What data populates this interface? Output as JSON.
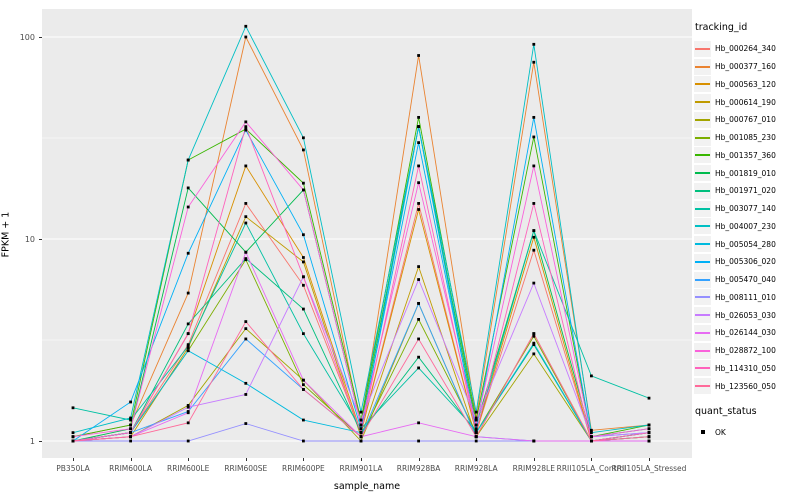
{
  "figure": {
    "ylabel": "FPKM + 1",
    "xlabel": "sample_name",
    "legend_tracking_title": "tracking_id",
    "legend_quant_title": "quant_status",
    "quant_items": [
      {
        "label": "OK",
        "marker": "black-square"
      }
    ],
    "panel_bg": "#EBEBEB",
    "gridline_color": "#FFFFFF",
    "tick_text_color": "#4D4D4D",
    "point_color": "#000000"
  },
  "chart_data": {
    "type": "line",
    "title": "",
    "xlabel": "sample_name",
    "ylabel": "FPKM + 1",
    "yscale": "log10",
    "y_ticks": [
      "1",
      "10",
      "100"
    ],
    "y_tick_values": [
      1,
      10,
      100
    ],
    "y_minor_values": [
      3.1623,
      31.623
    ],
    "ylim": [
      0.88,
      135
    ],
    "grid": true,
    "legend_position": "right",
    "categories": [
      "PB350LA",
      "RRIM600LA",
      "RRIM600LE",
      "RRIM600SE",
      "RRIM600PE",
      "RRIM901LA",
      "RRIM928BA",
      "RRIM928LA",
      "RRIM928LE",
      "RRII105LA_Control",
      "RRII105LA_Stressed"
    ],
    "series": [
      {
        "name": "Hb_000264_340",
        "color": "#F8766D",
        "values": [
          1.0,
          1.1,
          3.0,
          15,
          5.9,
          1.1,
          15,
          1.1,
          8.8,
          1.0,
          1.1
        ]
      },
      {
        "name": "Hb_000377_160",
        "color": "#EA8331",
        "values": [
          1.05,
          1.2,
          5.4,
          100,
          27.6,
          1.2,
          81,
          1.3,
          75,
          1.13,
          1.2
        ]
      },
      {
        "name": "Hb_000563_120",
        "color": "#D89000",
        "values": [
          1.0,
          1.1,
          3.4,
          23,
          8.1,
          1.1,
          14,
          1.1,
          10.2,
          1.0,
          1.05
        ]
      },
      {
        "name": "Hb_000614_190",
        "color": "#C09B00",
        "values": [
          1.0,
          1.05,
          2.9,
          12.9,
          7.7,
          1.05,
          7.3,
          1.05,
          3.4,
          1.0,
          1.0
        ]
      },
      {
        "name": "Hb_000767_010",
        "color": "#A3A500",
        "values": [
          1.0,
          1.05,
          1.5,
          3.6,
          2.0,
          1.0,
          4.8,
          1.05,
          2.7,
          1.0,
          1.05
        ]
      },
      {
        "name": "Hb_001085_230",
        "color": "#7CAE00",
        "values": [
          1.0,
          1.1,
          2.8,
          7.9,
          1.9,
          1.05,
          4.0,
          1.1,
          3.3,
          1.0,
          1.1
        ]
      },
      {
        "name": "Hb_001357_360",
        "color": "#39B600",
        "values": [
          1.05,
          1.2,
          24.6,
          35,
          18.9,
          1.27,
          40,
          1.27,
          32,
          1.05,
          1.2
        ]
      },
      {
        "name": "Hb_001819_010",
        "color": "#00BB4E",
        "values": [
          1.0,
          1.15,
          17.9,
          8.6,
          17.5,
          1.2,
          36,
          1.2,
          11,
          1.05,
          1.15
        ]
      },
      {
        "name": "Hb_001971_020",
        "color": "#00BF7D",
        "values": [
          1.0,
          1.1,
          3.8,
          8.0,
          4.5,
          1.1,
          2.6,
          1.1,
          3.0,
          1.0,
          1.1
        ]
      },
      {
        "name": "Hb_003077_140",
        "color": "#00C1A3",
        "values": [
          1.46,
          1.27,
          2.95,
          12,
          3.4,
          1.15,
          2.3,
          1.13,
          11,
          2.1,
          1.63
        ]
      },
      {
        "name": "Hb_004007_230",
        "color": "#00BFC4",
        "values": [
          1.1,
          1.3,
          24.6,
          113,
          31.7,
          1.39,
          36,
          1.39,
          92,
          1.1,
          1.2
        ]
      },
      {
        "name": "Hb_005054_280",
        "color": "#00BADE",
        "values": [
          1.0,
          1.1,
          2.8,
          1.93,
          1.27,
          1.1,
          36,
          1.1,
          3.05,
          1.0,
          1.05
        ]
      },
      {
        "name": "Hb_005306_020",
        "color": "#00B0F6",
        "values": [
          1.0,
          1.56,
          8.5,
          34.6,
          10.5,
          1.15,
          30,
          1.15,
          40,
          1.05,
          1.1
        ]
      },
      {
        "name": "Hb_005470_040",
        "color": "#35A2FF",
        "values": [
          1.0,
          1.1,
          1.4,
          3.2,
          1.8,
          1.05,
          4.8,
          1.05,
          1.0,
          1.0,
          1.0
        ]
      },
      {
        "name": "Hb_008111_010",
        "color": "#9590FF",
        "values": [
          1.0,
          1.0,
          1.0,
          1.22,
          1.0,
          1.0,
          1.0,
          1.0,
          1.0,
          1.0,
          1.0
        ]
      },
      {
        "name": "Hb_026053_030",
        "color": "#C77CFF",
        "values": [
          1.0,
          1.05,
          1.47,
          1.7,
          6.5,
          1.27,
          6.3,
          1.27,
          6.05,
          1.05,
          1.1
        ]
      },
      {
        "name": "Hb_026144_030",
        "color": "#E76BF3",
        "values": [
          1.0,
          1.05,
          1.38,
          8.6,
          2.0,
          1.05,
          1.23,
          1.05,
          1.0,
          1.0,
          1.0
        ]
      },
      {
        "name": "Hb_028872_100",
        "color": "#FA62DB",
        "values": [
          1.05,
          1.15,
          14.4,
          38,
          17.5,
          1.2,
          19,
          1.2,
          23,
          1.05,
          1.15
        ]
      },
      {
        "name": "Hb_114310_050",
        "color": "#FF62BC",
        "values": [
          1.0,
          1.1,
          3.4,
          36,
          6.5,
          1.1,
          23,
          1.1,
          15,
          1.0,
          1.1
        ]
      },
      {
        "name": "Hb_123560_050",
        "color": "#FF6A9A",
        "values": [
          1.0,
          1.05,
          1.23,
          3.9,
          1.8,
          1.05,
          3.2,
          1.05,
          3.4,
          1.0,
          1.05
        ]
      }
    ]
  }
}
